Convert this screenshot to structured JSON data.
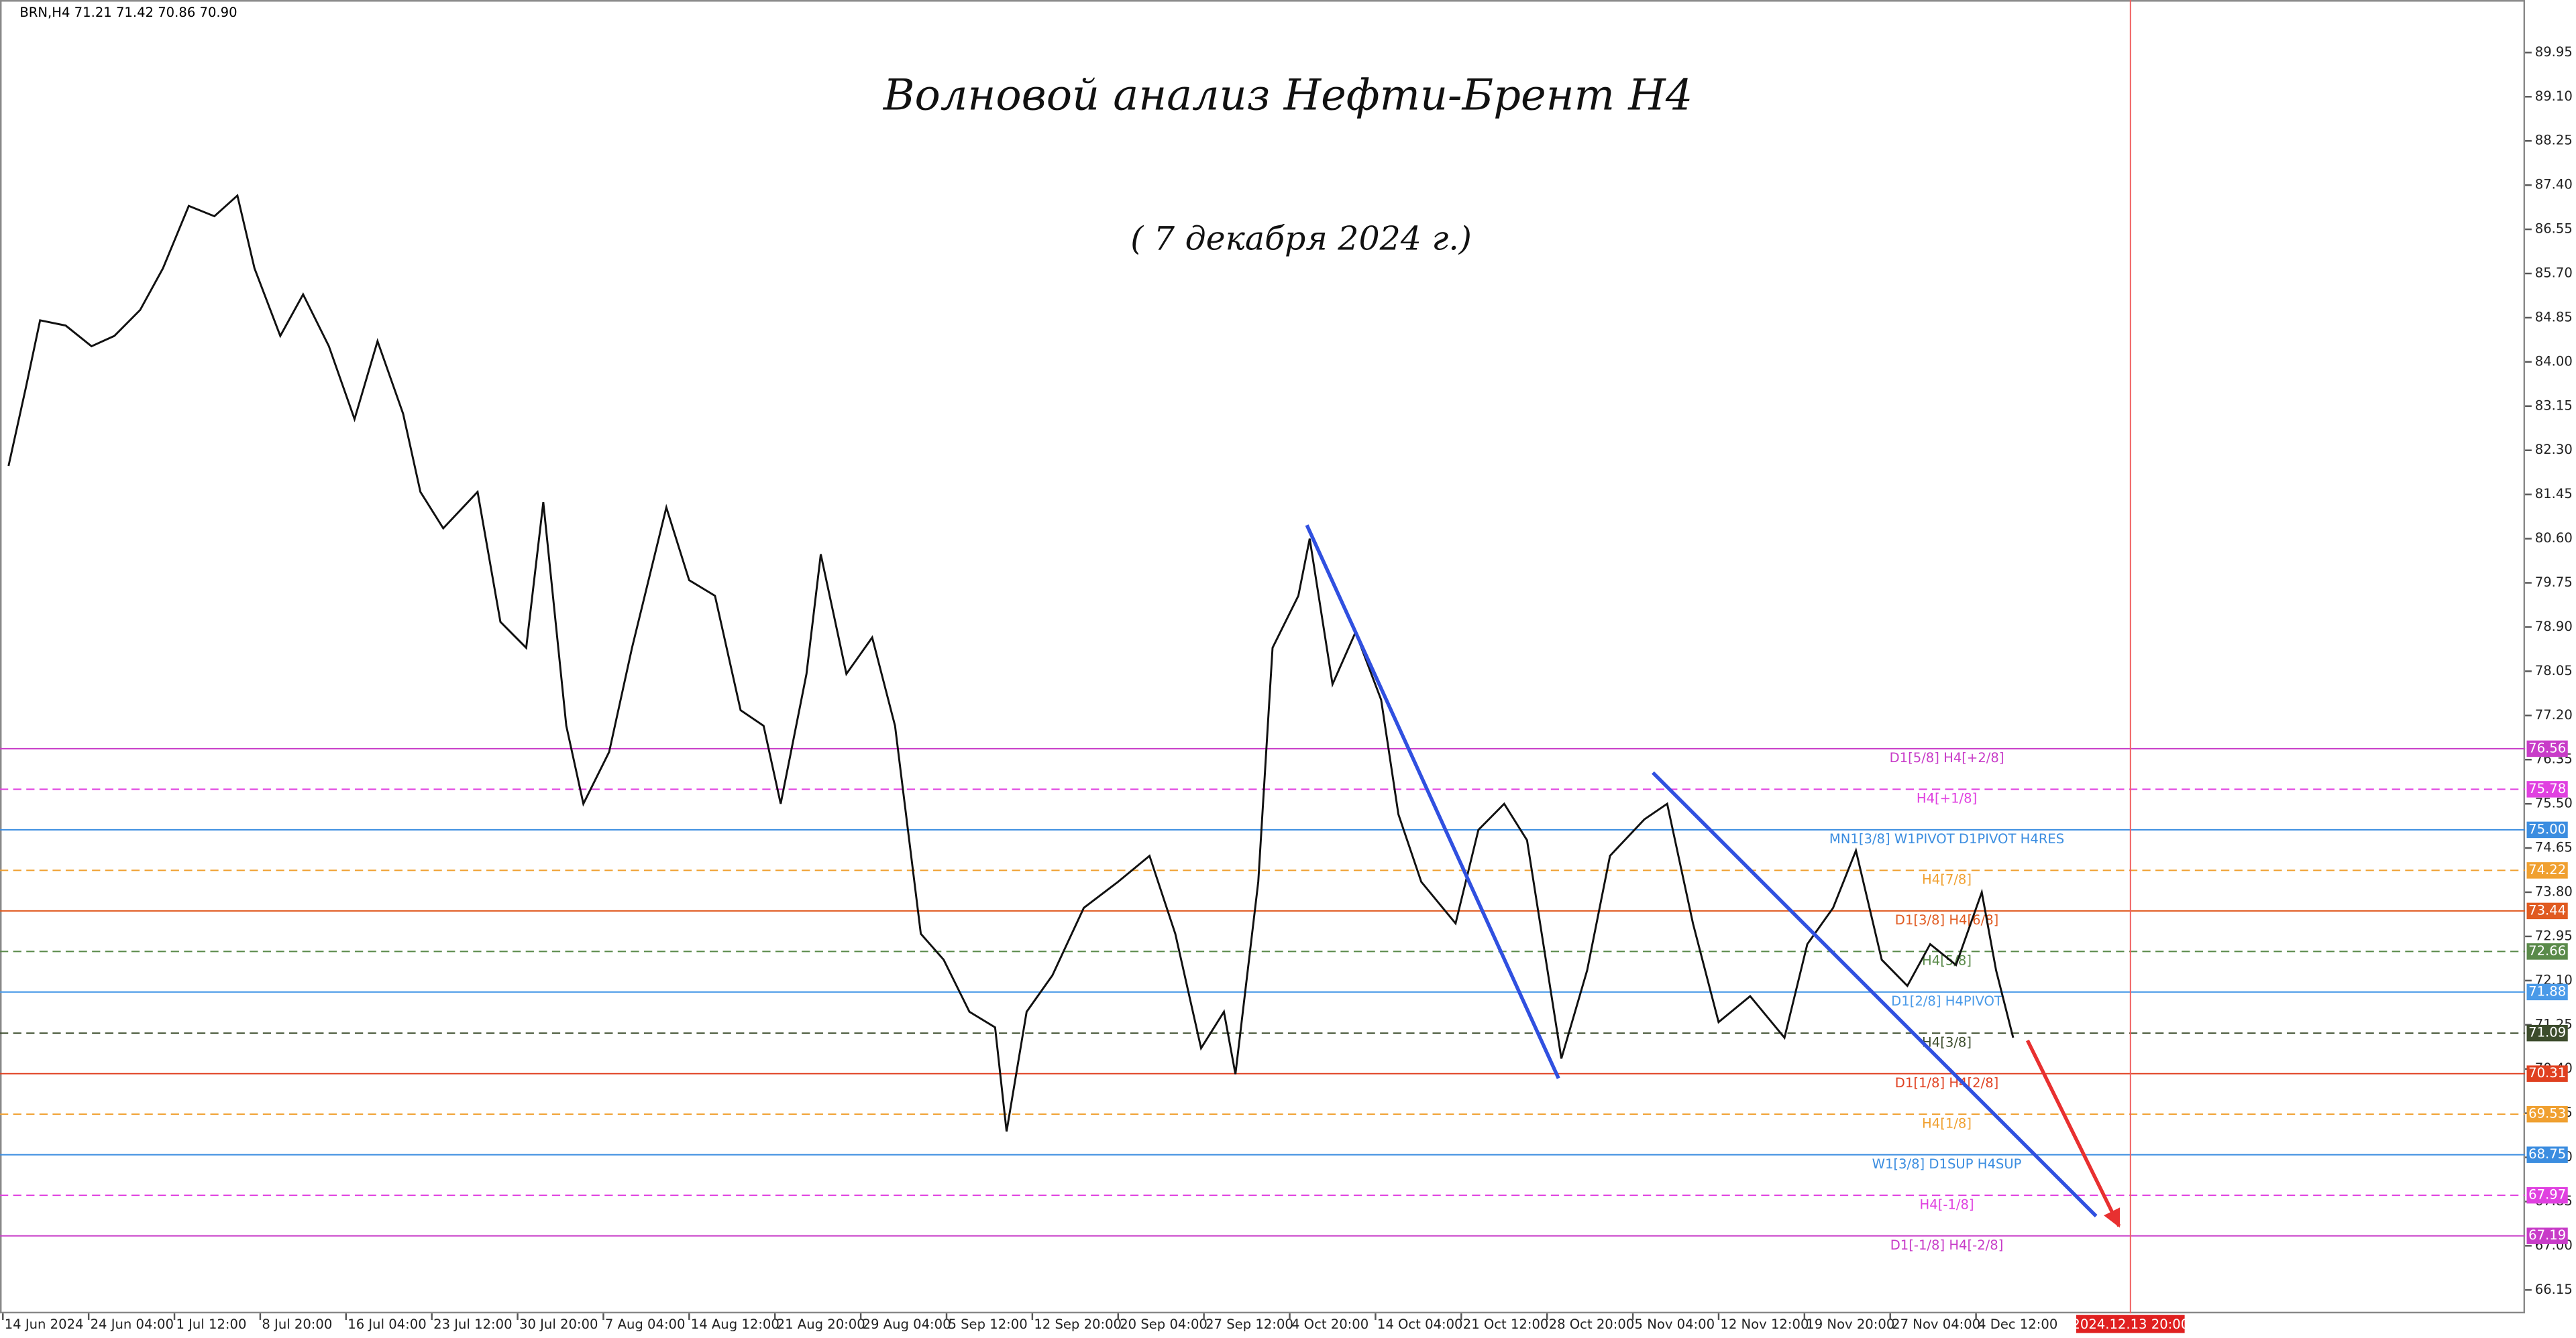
{
  "chart_data": {
    "type": "line",
    "header": "BRN,H4  71.21 71.42 70.86 70.90",
    "title": "Волновой анализ Нефти-Брент Н4",
    "subtitle": "( 7 декабря 2024 г.)",
    "color": "#111111",
    "x": [
      3,
      9,
      14,
      23,
      32,
      40,
      49,
      57,
      66,
      75,
      83,
      89,
      98,
      106,
      115,
      124,
      132,
      141,
      147,
      155,
      167,
      175,
      184,
      190,
      198,
      204,
      213,
      221,
      233,
      241,
      250,
      259,
      267,
      273,
      282,
      287,
      296,
      305,
      313,
      322,
      330,
      339,
      348,
      352,
      359,
      368,
      379,
      391,
      402,
      411,
      420,
      428,
      432,
      440,
      445,
      454,
      458,
      466,
      474,
      483,
      489,
      497,
      509,
      517,
      526,
      534,
      546,
      555,
      563,
      575,
      583,
      592,
      601,
      612,
      624,
      632,
      641,
      649,
      658,
      667,
      675,
      684,
      693,
      698,
      704
    ],
    "values": [
      82.0,
      83.5,
      84.8,
      84.7,
      84.3,
      84.5,
      85.0,
      85.8,
      87.0,
      86.8,
      87.2,
      85.8,
      84.5,
      85.3,
      84.3,
      82.9,
      84.4,
      83.0,
      81.5,
      80.8,
      81.5,
      79.0,
      78.5,
      81.3,
      77.0,
      75.5,
      76.5,
      78.5,
      81.2,
      79.8,
      79.5,
      77.3,
      77.0,
      75.5,
      78.0,
      80.3,
      78.0,
      78.7,
      77.0,
      73.0,
      72.5,
      71.5,
      71.2,
      69.2,
      71.5,
      72.2,
      73.5,
      74.0,
      74.5,
      73.0,
      70.8,
      71.5,
      70.3,
      74.0,
      78.5,
      79.5,
      80.6,
      77.8,
      78.8,
      77.5,
      75.3,
      74.0,
      73.2,
      75.0,
      75.5,
      74.8,
      70.6,
      72.3,
      74.5,
      75.2,
      75.5,
      73.2,
      71.3,
      71.8,
      71.0,
      72.8,
      73.5,
      74.6,
      72.5,
      72.0,
      72.8,
      72.4,
      73.8,
      72.3,
      71.0
    ],
    "xlim": [
      0,
      883
    ],
    "ylim": [
      65.7,
      90.96
    ],
    "xticks": [
      {
        "value": 1,
        "label": "14 Jun 2024"
      },
      {
        "value": 31,
        "label": "24 Jun 04:00"
      },
      {
        "value": 61,
        "label": "1 Jul 12:00"
      },
      {
        "value": 91,
        "label": "8 Jul 20:00"
      },
      {
        "value": 121,
        "label": "16 Jul 04:00"
      },
      {
        "value": 151,
        "label": "23 Jul 12:00"
      },
      {
        "value": 181,
        "label": "30 Jul 20:00"
      },
      {
        "value": 211,
        "label": "7 Aug 04:00"
      },
      {
        "value": 241,
        "label": "14 Aug 12:00"
      },
      {
        "value": 271,
        "label": "21 Aug 20:00"
      },
      {
        "value": 301,
        "label": "29 Aug 04:00"
      },
      {
        "value": 331,
        "label": "5 Sep 12:00"
      },
      {
        "value": 361,
        "label": "12 Sep 20:00"
      },
      {
        "value": 391,
        "label": "20 Sep 04:00"
      },
      {
        "value": 421,
        "label": "27 Sep 12:00"
      },
      {
        "value": 451,
        "label": "4 Oct 20:00"
      },
      {
        "value": 481,
        "label": "14 Oct 04:00"
      },
      {
        "value": 511,
        "label": "21 Oct 12:00"
      },
      {
        "value": 541,
        "label": "28 Oct 20:00"
      },
      {
        "value": 571,
        "label": "5 Nov 04:00"
      },
      {
        "value": 601,
        "label": "12 Nov 12:00"
      },
      {
        "value": 631,
        "label": "19 Nov 20:00"
      },
      {
        "value": 661,
        "label": "27 Nov 04:00"
      },
      {
        "value": 691,
        "label": "4 Dec 12:00"
      }
    ],
    "yticks": [
      66.15,
      {
        "value": 67,
        "label": "67.00"
      },
      67.85,
      {
        "value": 68.7,
        "label": "68.70"
      },
      69.55,
      {
        "value": 70.4,
        "label": "70.40"
      },
      71.25,
      {
        "value": 72.1,
        "label": "72.10"
      },
      72.95,
      {
        "value": 73.8,
        "label": "73.80"
      },
      74.65,
      {
        "value": 75.5,
        "label": "75.50"
      },
      76.35,
      {
        "value": 77.2,
        "label": "77.20"
      },
      78.05,
      {
        "value": 78.9,
        "label": "78.90"
      },
      79.75,
      {
        "value": 80.6,
        "label": "80.60"
      },
      81.45,
      {
        "value": 82.3,
        "label": "82.30"
      },
      83.15,
      {
        "value": 84,
        "label": "84.00"
      },
      84.85,
      {
        "value": 85.7,
        "label": "85.70"
      },
      86.55,
      {
        "value": 87.4,
        "label": "87.40"
      },
      88.25,
      {
        "value": 89.1,
        "label": "89.10"
      },
      89.95
    ],
    "levels": [
      {
        "name": "D1[5/8] H4[+2/8]",
        "value": 76.56,
        "color": "#c83cc8",
        "dash": false
      },
      {
        "name": "H4[+1/8]",
        "value": 75.78,
        "color": "#e040e0",
        "dash": true
      },
      {
        "name": "MN1[3/8] W1PIVOT D1PIVOT H4RES",
        "value": 75,
        "value_label": "75.00",
        "color": "#3b8de0",
        "dash": false
      },
      {
        "name": "H4[7/8]",
        "value": 74.22,
        "color": "#f0a030",
        "dash": true
      },
      {
        "name": "D1[3/8] H4[6/8]",
        "value": 73.44,
        "color": "#e05a20",
        "dash": false
      },
      {
        "name": "H4[5/8]",
        "value": 72.66,
        "color": "#5a8a4a",
        "dash": true
      },
      {
        "name": "D1[2/8] H4PIVOT",
        "value": 71.88,
        "color": "#4a9ae8",
        "dash": false
      },
      {
        "name": "H4[3/8]",
        "value": 71.09,
        "color": "#3c4c2c",
        "dash": true
      },
      {
        "name": "D1[1/8] H4[2/8]",
        "value": 70.31,
        "color": "#e04020",
        "dash": false
      },
      {
        "name": "H4[1/8]",
        "value": 69.53,
        "color": "#f0a030",
        "dash": true
      },
      {
        "name": "W1[3/8] D1SUP H4SUP",
        "value": 68.75,
        "color": "#3b8de0",
        "dash": false
      },
      {
        "name": "H4[-1/8]",
        "value": 67.97,
        "color": "#e040e0",
        "dash": true
      },
      {
        "name": "D1[-1/8] H4[-2/8]",
        "value": 67.19,
        "color": "#c83cc8",
        "dash": false
      }
    ],
    "annotations": [
      {
        "x": [
          457,
          545
        ],
        "y": [
          80.86,
          70.22
        ],
        "color": "#3050e0"
      },
      {
        "x": [
          578,
          733
        ],
        "y": [
          76.1,
          67.57
        ],
        "color": "#3050e0"
      },
      {
        "x": [
          709,
          741
        ],
        "y": [
          70.95,
          67.38
        ],
        "color": "#e83030"
      }
    ],
    "cursor": {
      "x": 745,
      "label": "2024.12.13 20:00"
    }
  }
}
